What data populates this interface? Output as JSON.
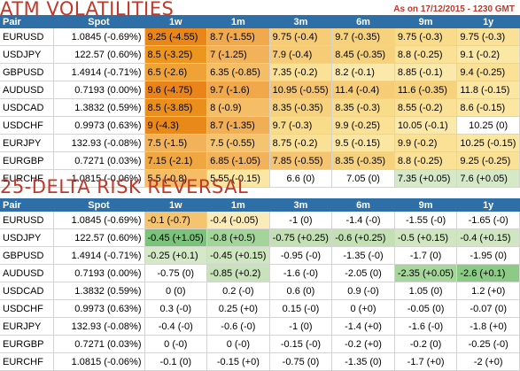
{
  "atm": {
    "title": "ATM VOLATILITIES",
    "asof": "As on 17/12/2015 - 1230 GMT",
    "headers": [
      "Pair",
      "Spot",
      "1w",
      "1m",
      "3m",
      "6m",
      "9m",
      "1y"
    ],
    "rows": [
      {
        "pair": "EURUSD",
        "spot": "1.0845 (-0.69%)",
        "cells": [
          "9.25 (-4.55)",
          "8.7 (-1.55)",
          "9.75 (-0.4)",
          "9.7 (-0.35)",
          "9.75 (-0.3)",
          "9.75 (-0.3)"
        ],
        "colors": [
          "#e8861a",
          "#f1a94d",
          "#f6cd76",
          "#f7d27d",
          "#f9dc8a",
          "#fae196"
        ]
      },
      {
        "pair": "USDJPY",
        "spot": "122.57 (0.60%)",
        "cells": [
          "8.5 (-3.25)",
          "7 (-1.25)",
          "7.9 (-0.4)",
          "8.45 (-0.35)",
          "8.8 (-0.25)",
          "9.1 (-0.2)"
        ],
        "colors": [
          "#ec961f",
          "#f2b25a",
          "#f6cd76",
          "#f7d27d",
          "#fae196",
          "#fbe8a4"
        ]
      },
      {
        "pair": "GBPUSD",
        "spot": "1.4914 (-0.71%)",
        "cells": [
          "6.5 (-2.6)",
          "6.35 (-0.85)",
          "7.35 (-0.2)",
          "8.2 (-0.1)",
          "8.85 (-0.1)",
          "9.4 (-0.25)"
        ],
        "colors": [
          "#efa236",
          "#f4bd66",
          "#fae196",
          "#fbe9ab",
          "#fbe9ab",
          "#fae196"
        ]
      },
      {
        "pair": "AUDUSD",
        "spot": "0.7193 (0.00%)",
        "cells": [
          "9.6 (-4.75)",
          "9.7 (-1.6)",
          "10.95 (-0.55)",
          "11.4 (-0.4)",
          "11.6 (-0.35)",
          "11.8 (-0.15)"
        ],
        "colors": [
          "#e8841a",
          "#f1a84b",
          "#f5c470",
          "#f6cd76",
          "#f7d27d",
          "#fbe6a2"
        ]
      },
      {
        "pair": "USDCAD",
        "spot": "1.3832 (0.59%)",
        "cells": [
          "8.5 (-3.85)",
          "8 (-0.9)",
          "8.35 (-0.35)",
          "8.35 (-0.3)",
          "8.55 (-0.2)",
          "8.6 (-0.15)"
        ],
        "colors": [
          "#ea8f1c",
          "#f4bd66",
          "#f7d27d",
          "#f9dc8a",
          "#fae196",
          "#fbe6a2"
        ]
      },
      {
        "pair": "USDCHF",
        "spot": "0.9973 (0.63%)",
        "cells": [
          "9 (-4.3)",
          "8.7 (-1.35)",
          "9.7 (-0.3)",
          "9.9 (-0.25)",
          "10.05 (-0.1)",
          "10.25 (0)"
        ],
        "colors": [
          "#e9891a",
          "#f1ae55",
          "#f9dc8a",
          "#fae196",
          "#fbe9ab",
          "#ffffff"
        ]
      },
      {
        "pair": "EURJPY",
        "spot": "132.93 (-0.08%)",
        "cells": [
          "7.5 (-1.5)",
          "7.5 (-0.55)",
          "8.75 (-0.2)",
          "9.5 (-0.15)",
          "9.9 (-0.2)",
          "10.25 (-0.15)"
        ],
        "colors": [
          "#f2b25a",
          "#f5c470",
          "#fae196",
          "#fbe6a2",
          "#fae196",
          "#fbe6a2"
        ]
      },
      {
        "pair": "EURGBP",
        "spot": "0.7271 (0.03%)",
        "cells": [
          "7.15 (-2.1)",
          "6.85 (-1.05)",
          "7.85 (-0.55)",
          "8.35 (-0.35)",
          "8.8 (-0.25)",
          "9.25 (-0.25)"
        ],
        "colors": [
          "#f0a740",
          "#f2b25a",
          "#f5c470",
          "#f7d27d",
          "#fae196",
          "#fae196"
        ]
      },
      {
        "pair": "EURCHF",
        "spot": "1.0815 (-0.06%)",
        "cells": [
          "5.5 (-0.8)",
          "5.55 (-0.15)",
          "6.6 (0)",
          "7.05 (0)",
          "7.35 (+0.05)",
          "7.6 (+0.05)"
        ],
        "colors": [
          "#f4bd66",
          "#fbe6a2",
          "#ffffff",
          "#ffffff",
          "#d5e8c7",
          "#d5e8c7"
        ]
      }
    ]
  },
  "rr": {
    "title": "25-DELTA RISK REVERSAL",
    "headers": [
      "Pair",
      "Spot",
      "1w",
      "1m",
      "3m",
      "6m",
      "9m",
      "1y"
    ],
    "rows": [
      {
        "pair": "EURUSD",
        "spot": "1.0845 (-0.69%)",
        "cells": [
          "-0.1 (-0.7)",
          "-0.4 (-0.05)",
          "-1 (0)",
          "-1.4 (-0)",
          "-1.55 (-0)",
          "-1.65 (-0)"
        ],
        "colors": [
          "#f5c470",
          "#fbebb9",
          "#ffffff",
          "#ffffff",
          "#ffffff",
          "#ffffff"
        ]
      },
      {
        "pair": "USDJPY",
        "spot": "122.57 (0.60%)",
        "cells": [
          "-0.45 (+1.05)",
          "-0.8 (+0.5)",
          "-0.75 (+0.25)",
          "-0.6 (+0.25)",
          "-0.5 (+0.15)",
          "-0.4 (+0.15)"
        ],
        "colors": [
          "#7bc27a",
          "#a3d49a",
          "#c2e0b4",
          "#c2e0b4",
          "#cfe6c1",
          "#cfe6c1"
        ]
      },
      {
        "pair": "GBPUSD",
        "spot": "1.4914 (-0.71%)",
        "cells": [
          "-0.25 (+0.1)",
          "-0.45 (+0.15)",
          "-0.95 (-0)",
          "-1.35 (-0)",
          "-1.7 (0)",
          "-1.95 (0)"
        ],
        "colors": [
          "#d5e8c7",
          "#cfe6c1",
          "#ffffff",
          "#ffffff",
          "#ffffff",
          "#ffffff"
        ]
      },
      {
        "pair": "AUDUSD",
        "spot": "0.7193 (0.00%)",
        "cells": [
          "-0.75 (0)",
          "-0.85 (+0.2)",
          "-1.6 (-0)",
          "-2.05 (0)",
          "-2.35 (+0.05)",
          "-2.6 (+0.1)"
        ],
        "colors": [
          "#ffffff",
          "#c8e3bb",
          "#ffffff",
          "#ffffff",
          "#a6d69c",
          "#8ccb86"
        ]
      },
      {
        "pair": "USDCAD",
        "spot": "1.3832 (0.59%)",
        "cells": [
          "0 (0)",
          "0.2 (-0)",
          "0.6 (0)",
          "0.9 (-0)",
          "1.05 (0)",
          "1.2 (+0)"
        ],
        "colors": [
          "#ffffff",
          "#ffffff",
          "#ffffff",
          "#ffffff",
          "#ffffff",
          "#ffffff"
        ]
      },
      {
        "pair": "USDCHF",
        "spot": "0.9973 (0.63%)",
        "cells": [
          "0.3 (-0)",
          "0.25 (+0)",
          "0.15 (-0)",
          "0 (+0)",
          "-0.05 (0)",
          "-0.07 (0)"
        ],
        "colors": [
          "#ffffff",
          "#ffffff",
          "#ffffff",
          "#ffffff",
          "#ffffff",
          "#ffffff"
        ]
      },
      {
        "pair": "EURJPY",
        "spot": "132.93 (-0.08%)",
        "cells": [
          "-0.4 (-0)",
          "-0.6 (-0)",
          "-1 (0)",
          "-1.4 (+0)",
          "-1.6 (-0)",
          "-1.8 (+0)"
        ],
        "colors": [
          "#ffffff",
          "#ffffff",
          "#ffffff",
          "#ffffff",
          "#ffffff",
          "#ffffff"
        ]
      },
      {
        "pair": "EURGBP",
        "spot": "0.7271 (0.03%)",
        "cells": [
          "0 (-0)",
          "0 (-0)",
          "-0.15 (-0)",
          "-0.2 (+0)",
          "-0.2 (0)",
          "-0.25 (-0)"
        ],
        "colors": [
          "#ffffff",
          "#ffffff",
          "#ffffff",
          "#ffffff",
          "#ffffff",
          "#ffffff"
        ]
      },
      {
        "pair": "EURCHF",
        "spot": "1.0815 (-0.06%)",
        "cells": [
          "-0.1 (0)",
          "-0.15 (+0)",
          "-0.75 (0)",
          "-1.35 (0)",
          "-1.7 (+0)",
          "-2 (+0)"
        ],
        "colors": [
          "#ffffff",
          "#ffffff",
          "#ffffff",
          "#ffffff",
          "#ffffff",
          "#ffffff"
        ]
      }
    ]
  },
  "chart_data": [
    {
      "type": "table",
      "title": "ATM VOLATILITIES",
      "subtitle": "As on 17/12/2015 - 1230 GMT",
      "columns": [
        "Pair",
        "Spot",
        "1w",
        "1m",
        "3m",
        "6m",
        "9m",
        "1y"
      ],
      "rows": [
        [
          "EURUSD",
          "1.0845 (-0.69%)",
          "9.25 (-4.55)",
          "8.7 (-1.55)",
          "9.75 (-0.4)",
          "9.7 (-0.35)",
          "9.75 (-0.3)",
          "9.75 (-0.3)"
        ],
        [
          "USDJPY",
          "122.57 (0.60%)",
          "8.5 (-3.25)",
          "7 (-1.25)",
          "7.9 (-0.4)",
          "8.45 (-0.35)",
          "8.8 (-0.25)",
          "9.1 (-0.2)"
        ],
        [
          "GBPUSD",
          "1.4914 (-0.71%)",
          "6.5 (-2.6)",
          "6.35 (-0.85)",
          "7.35 (-0.2)",
          "8.2 (-0.1)",
          "8.85 (-0.1)",
          "9.4 (-0.25)"
        ],
        [
          "AUDUSD",
          "0.7193 (0.00%)",
          "9.6 (-4.75)",
          "9.7 (-1.6)",
          "10.95 (-0.55)",
          "11.4 (-0.4)",
          "11.6 (-0.35)",
          "11.8 (-0.15)"
        ],
        [
          "USDCAD",
          "1.3832 (0.59%)",
          "8.5 (-3.85)",
          "8 (-0.9)",
          "8.35 (-0.35)",
          "8.35 (-0.3)",
          "8.55 (-0.2)",
          "8.6 (-0.15)"
        ],
        [
          "USDCHF",
          "0.9973 (0.63%)",
          "9 (-4.3)",
          "8.7 (-1.35)",
          "9.7 (-0.3)",
          "9.9 (-0.25)",
          "10.05 (-0.1)",
          "10.25 (0)"
        ],
        [
          "EURJPY",
          "132.93 (-0.08%)",
          "7.5 (-1.5)",
          "7.5 (-0.55)",
          "8.75 (-0.2)",
          "9.5 (-0.15)",
          "9.9 (-0.2)",
          "10.25 (-0.15)"
        ],
        [
          "EURGBP",
          "0.7271 (0.03%)",
          "7.15 (-2.1)",
          "6.85 (-1.05)",
          "7.85 (-0.55)",
          "8.35 (-0.35)",
          "8.8 (-0.25)",
          "9.25 (-0.25)"
        ],
        [
          "EURCHF",
          "1.0815 (-0.06%)",
          "5.5 (-0.8)",
          "5.55 (-0.15)",
          "6.6 (0)",
          "7.05 (0)",
          "7.35 (+0.05)",
          "7.6 (+0.05)"
        ]
      ]
    },
    {
      "type": "table",
      "title": "25-DELTA RISK REVERSAL",
      "columns": [
        "Pair",
        "Spot",
        "1w",
        "1m",
        "3m",
        "6m",
        "9m",
        "1y"
      ],
      "rows": [
        [
          "EURUSD",
          "1.0845 (-0.69%)",
          "-0.1 (-0.7)",
          "-0.4 (-0.05)",
          "-1 (0)",
          "-1.4 (-0)",
          "-1.55 (-0)",
          "-1.65 (-0)"
        ],
        [
          "USDJPY",
          "122.57 (0.60%)",
          "-0.45 (+1.05)",
          "-0.8 (+0.5)",
          "-0.75 (+0.25)",
          "-0.6 (+0.25)",
          "-0.5 (+0.15)",
          "-0.4 (+0.15)"
        ],
        [
          "GBPUSD",
          "1.4914 (-0.71%)",
          "-0.25 (+0.1)",
          "-0.45 (+0.15)",
          "-0.95 (-0)",
          "-1.35 (-0)",
          "-1.7 (0)",
          "-1.95 (0)"
        ],
        [
          "AUDUSD",
          "0.7193 (0.00%)",
          "-0.75 (0)",
          "-0.85 (+0.2)",
          "-1.6 (-0)",
          "-2.05 (0)",
          "-2.35 (+0.05)",
          "-2.6 (+0.1)"
        ],
        [
          "USDCAD",
          "1.3832 (0.59%)",
          "0 (0)",
          "0.2 (-0)",
          "0.6 (0)",
          "0.9 (-0)",
          "1.05 (0)",
          "1.2 (+0)"
        ],
        [
          "USDCHF",
          "0.9973 (0.63%)",
          "0.3 (-0)",
          "0.25 (+0)",
          "0.15 (-0)",
          "0 (+0)",
          "-0.05 (0)",
          "-0.07 (0)"
        ],
        [
          "EURJPY",
          "132.93 (-0.08%)",
          "-0.4 (-0)",
          "-0.6 (-0)",
          "-1 (0)",
          "-1.4 (+0)",
          "-1.6 (-0)",
          "-1.8 (+0)"
        ],
        [
          "EURGBP",
          "0.7271 (0.03%)",
          "0 (-0)",
          "0 (-0)",
          "-0.15 (-0)",
          "-0.2 (+0)",
          "-0.2 (0)",
          "-0.25 (-0)"
        ],
        [
          "EURCHF",
          "1.0815 (-0.06%)",
          "-0.1 (0)",
          "-0.15 (+0)",
          "-0.75 (0)",
          "-1.35 (0)",
          "-1.7 (+0)",
          "-2 (+0)"
        ]
      ]
    }
  ]
}
